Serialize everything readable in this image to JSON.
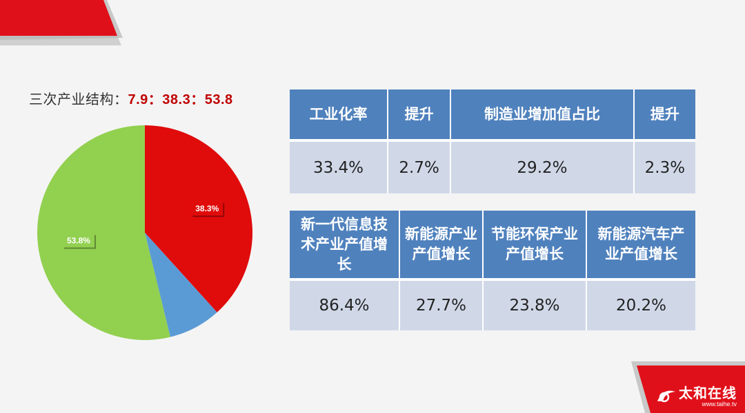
{
  "structure": {
    "label": "三次产业结构：",
    "ratio": "7.9：38.3：53.8"
  },
  "chart_data": {
    "type": "pie",
    "slices": [
      {
        "value": 38.3,
        "label": "38.3%",
        "color": "#e00b0b"
      },
      {
        "value": 7.9,
        "label": "",
        "color": "#5b9bd5"
      },
      {
        "value": 53.8,
        "label": "53.8%",
        "color": "#92d050"
      }
    ]
  },
  "table1": {
    "headers": [
      "工业化率",
      "提升",
      "制造业增加值占比",
      "提升"
    ],
    "values": [
      "33.4%",
      "2.7%",
      "29.2%",
      "2.3%"
    ]
  },
  "table2": {
    "headers": [
      "新一代信息技术产业产值增长",
      "新能源产业产值增长",
      "节能环保产业产值增长",
      "新能源汽车产业产值增长"
    ],
    "values": [
      "86.4%",
      "27.7%",
      "23.8%",
      "20.2%"
    ]
  },
  "logo": {
    "name": "太和在线",
    "url": "www.taihe.tv"
  },
  "colors": {
    "header_bg": "#4f81bd",
    "cell_bg": "#d0d8e8",
    "accent_red": "#c00000"
  }
}
